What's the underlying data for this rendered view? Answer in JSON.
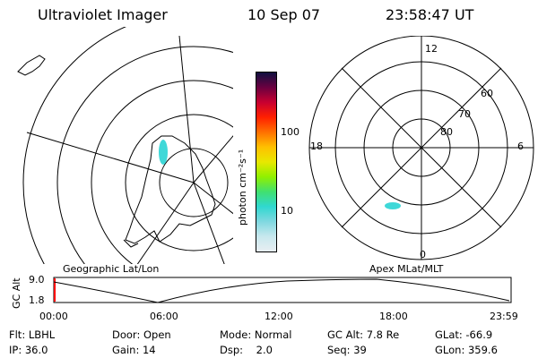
{
  "header": {
    "title": "Ultraviolet Imager",
    "date": "10 Sep 07",
    "time": "23:58:47 UT"
  },
  "left_map": {
    "label": "Geographic Lat/Lon",
    "aurora_color": "#3fd8d8"
  },
  "right_map": {
    "label": "Apex MLat/MLT",
    "mlt_labels": {
      "top": "12",
      "left": "18",
      "right": "6",
      "bottom": "0"
    },
    "lat_labels": [
      "60",
      "70",
      "80"
    ],
    "aurora_color": "#3fd8d8"
  },
  "colorbar": {
    "unit_label": "photon cm⁻²s⁻¹",
    "ticks": [
      "100",
      "10"
    ],
    "stops": [
      "#e8eef2",
      "#c8e8ee",
      "#80d8e0",
      "#30d8d0",
      "#40e070",
      "#90f000",
      "#e8e800",
      "#ffc000",
      "#ff7000",
      "#ff2000",
      "#c80030",
      "#6a0040",
      "#101040"
    ]
  },
  "altitude_plot": {
    "y_label": "GC Alt",
    "y_ticks": [
      "9.0",
      "1.8"
    ],
    "x_ticks": [
      "00:00",
      "06:00",
      "12:00",
      "18:00",
      "23:59"
    ]
  },
  "info_rows": [
    [
      "Flt: LBHL",
      "Door: Open",
      "Mode: Normal",
      "GC Alt: 7.8 Re",
      "GLat: -66.9"
    ],
    [
      "IP: 36.0",
      "Gain: 14",
      "Dsp:    2.0",
      "Seq: 39",
      "GLon: 359.6"
    ]
  ]
}
